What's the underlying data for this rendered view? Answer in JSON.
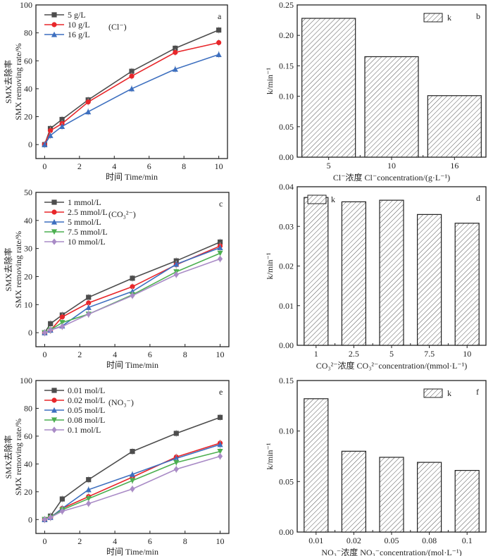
{
  "chart_data": [
    {
      "panel": "a",
      "type": "line",
      "annotation": "(Cl⁻)",
      "xlabel": "时间 Time/min",
      "ylabel": [
        "SMX去除率",
        "SMX removing rate/%"
      ],
      "xlim": [
        -0.5,
        10.5
      ],
      "ylim": [
        -10,
        100
      ],
      "xticks": [
        0,
        2,
        4,
        6,
        8,
        10
      ],
      "yticks": [
        0,
        20,
        40,
        60,
        80,
        100
      ],
      "x": [
        0,
        0.33,
        1,
        2.5,
        5,
        7.5,
        10
      ],
      "legend_position": "top-left",
      "series": [
        {
          "name": "5 g/L",
          "color": "#4d4d4d",
          "marker": "square",
          "values": [
            0,
            11.5,
            18,
            32,
            52.5,
            69,
            82
          ]
        },
        {
          "name": "10 g/L",
          "color": "#e8262a",
          "marker": "circle",
          "values": [
            0,
            10,
            15,
            30.5,
            49,
            66,
            73
          ]
        },
        {
          "name": "16 g/L",
          "color": "#3d6fbf",
          "marker": "triangle-up",
          "values": [
            0,
            6.5,
            13,
            23.5,
            40,
            54,
            64.5
          ]
        }
      ]
    },
    {
      "panel": "b",
      "type": "bar",
      "xlabel": "Cl⁻浓度 Cl⁻concentration/(g·L⁻¹)",
      "ylabel": "k/min⁻¹",
      "ylim": [
        0,
        0.25
      ],
      "yticks": [
        "0.00",
        "0.05",
        "0.10",
        "0.15",
        "0.20",
        "0.25"
      ],
      "categories": [
        "5",
        "10",
        "16"
      ],
      "values": [
        0.228,
        0.165,
        0.101
      ],
      "legend": "k",
      "legend_position": "top-right"
    },
    {
      "panel": "c",
      "type": "line",
      "annotation": "(CO₃²⁻)",
      "xlabel": "时间 Time/min",
      "ylabel": [
        "SMX去除率",
        "SMX removing rate/%"
      ],
      "xlim": [
        -0.5,
        10.5
      ],
      "ylim": [
        -5,
        50
      ],
      "xticks": [
        0,
        2,
        4,
        6,
        8,
        10
      ],
      "yticks": [
        0,
        10,
        20,
        30,
        40,
        50
      ],
      "x": [
        0,
        0.33,
        1,
        2.5,
        5,
        7.5,
        10
      ],
      "legend_position": "top-left",
      "series": [
        {
          "name": "1 mmol/L",
          "color": "#4d4d4d",
          "marker": "square",
          "values": [
            0,
            3.2,
            6.3,
            12.6,
            19.4,
            25.6,
            32.3
          ]
        },
        {
          "name": "2.5 mmol/L",
          "color": "#e8262a",
          "marker": "circle",
          "values": [
            0,
            0.8,
            5.6,
            10.6,
            16.4,
            24.2,
            30.9
          ]
        },
        {
          "name": "5 mmol/L",
          "color": "#3d6fbf",
          "marker": "triangle-up",
          "values": [
            0,
            0.9,
            2.4,
            9,
            14.7,
            24.4,
            30.3
          ]
        },
        {
          "name": "7.5 mmol/L",
          "color": "#4caf50",
          "marker": "triangle-down",
          "values": [
            0,
            1,
            3.6,
            6.6,
            13.5,
            21.7,
            28.3
          ]
        },
        {
          "name": "10 mmol/L",
          "color": "#a98bc6",
          "marker": "diamond",
          "values": [
            0,
            1,
            2.2,
            6.6,
            13.2,
            20.7,
            26.3
          ]
        }
      ]
    },
    {
      "panel": "d",
      "type": "bar",
      "xlabel": "CO₃²⁻浓度 CO₃²⁻concentration/(mmol·L⁻¹)",
      "ylabel": "k/min⁻¹",
      "ylim": [
        0,
        0.04
      ],
      "yticks": [
        "0.00",
        "0.01",
        "0.02",
        "0.03",
        "0.04"
      ],
      "categories": [
        "1",
        "2.5",
        "5",
        "7.5",
        "10"
      ],
      "values": [
        0.0373,
        0.0362,
        0.0366,
        0.033,
        0.0308
      ],
      "legend": "k",
      "legend_position": "top-left"
    },
    {
      "panel": "e",
      "type": "line",
      "annotation": "(NO₃⁻)",
      "xlabel": "时间 Time/min",
      "ylabel": [
        "SMX去除率",
        "SMX removing rate/%"
      ],
      "xlim": [
        -0.5,
        10.5
      ],
      "ylim": [
        -10,
        100
      ],
      "xticks": [
        0,
        2,
        4,
        6,
        8,
        10
      ],
      "yticks": [
        0,
        20,
        40,
        60,
        80,
        100
      ],
      "x": [
        0,
        0.33,
        1,
        2.5,
        5,
        7.5,
        10
      ],
      "legend_position": "top-left",
      "series": [
        {
          "name": "0.01 mol/L",
          "color": "#4d4d4d",
          "marker": "square",
          "values": [
            0,
            2.5,
            14.8,
            28.7,
            49,
            62,
            73.5
          ]
        },
        {
          "name": "0.02 mol/L",
          "color": "#e8262a",
          "marker": "circle",
          "values": [
            0,
            1.5,
            8,
            16.5,
            30.5,
            45,
            55
          ]
        },
        {
          "name": "0.05 mol/L",
          "color": "#3d6fbf",
          "marker": "triangle-up",
          "values": [
            0,
            1.5,
            8,
            21.5,
            32.5,
            44,
            54
          ]
        },
        {
          "name": "0.08 mol/L",
          "color": "#4caf50",
          "marker": "triangle-down",
          "values": [
            0,
            1.5,
            7,
            15,
            28,
            41,
            49
          ]
        },
        {
          "name": "0.1 mol/L",
          "color": "#a98bc6",
          "marker": "diamond",
          "values": [
            0,
            1.5,
            6,
            11.5,
            22,
            36.2,
            45.5
          ]
        }
      ]
    },
    {
      "panel": "f",
      "type": "bar",
      "xlabel": "NO₃⁻浓度 NO₃⁻concentration/(mol·L⁻¹)",
      "ylabel": "k/min⁻¹",
      "ylim": [
        0,
        0.15
      ],
      "yticks": [
        "0.00",
        "0.05",
        "0.10",
        "0.15"
      ],
      "categories": [
        "0.01",
        "0.02",
        "0.05",
        "0.08",
        "0.1"
      ],
      "values": [
        0.132,
        0.08,
        0.074,
        0.069,
        0.061
      ],
      "legend": "k",
      "legend_position": "top-right"
    }
  ]
}
